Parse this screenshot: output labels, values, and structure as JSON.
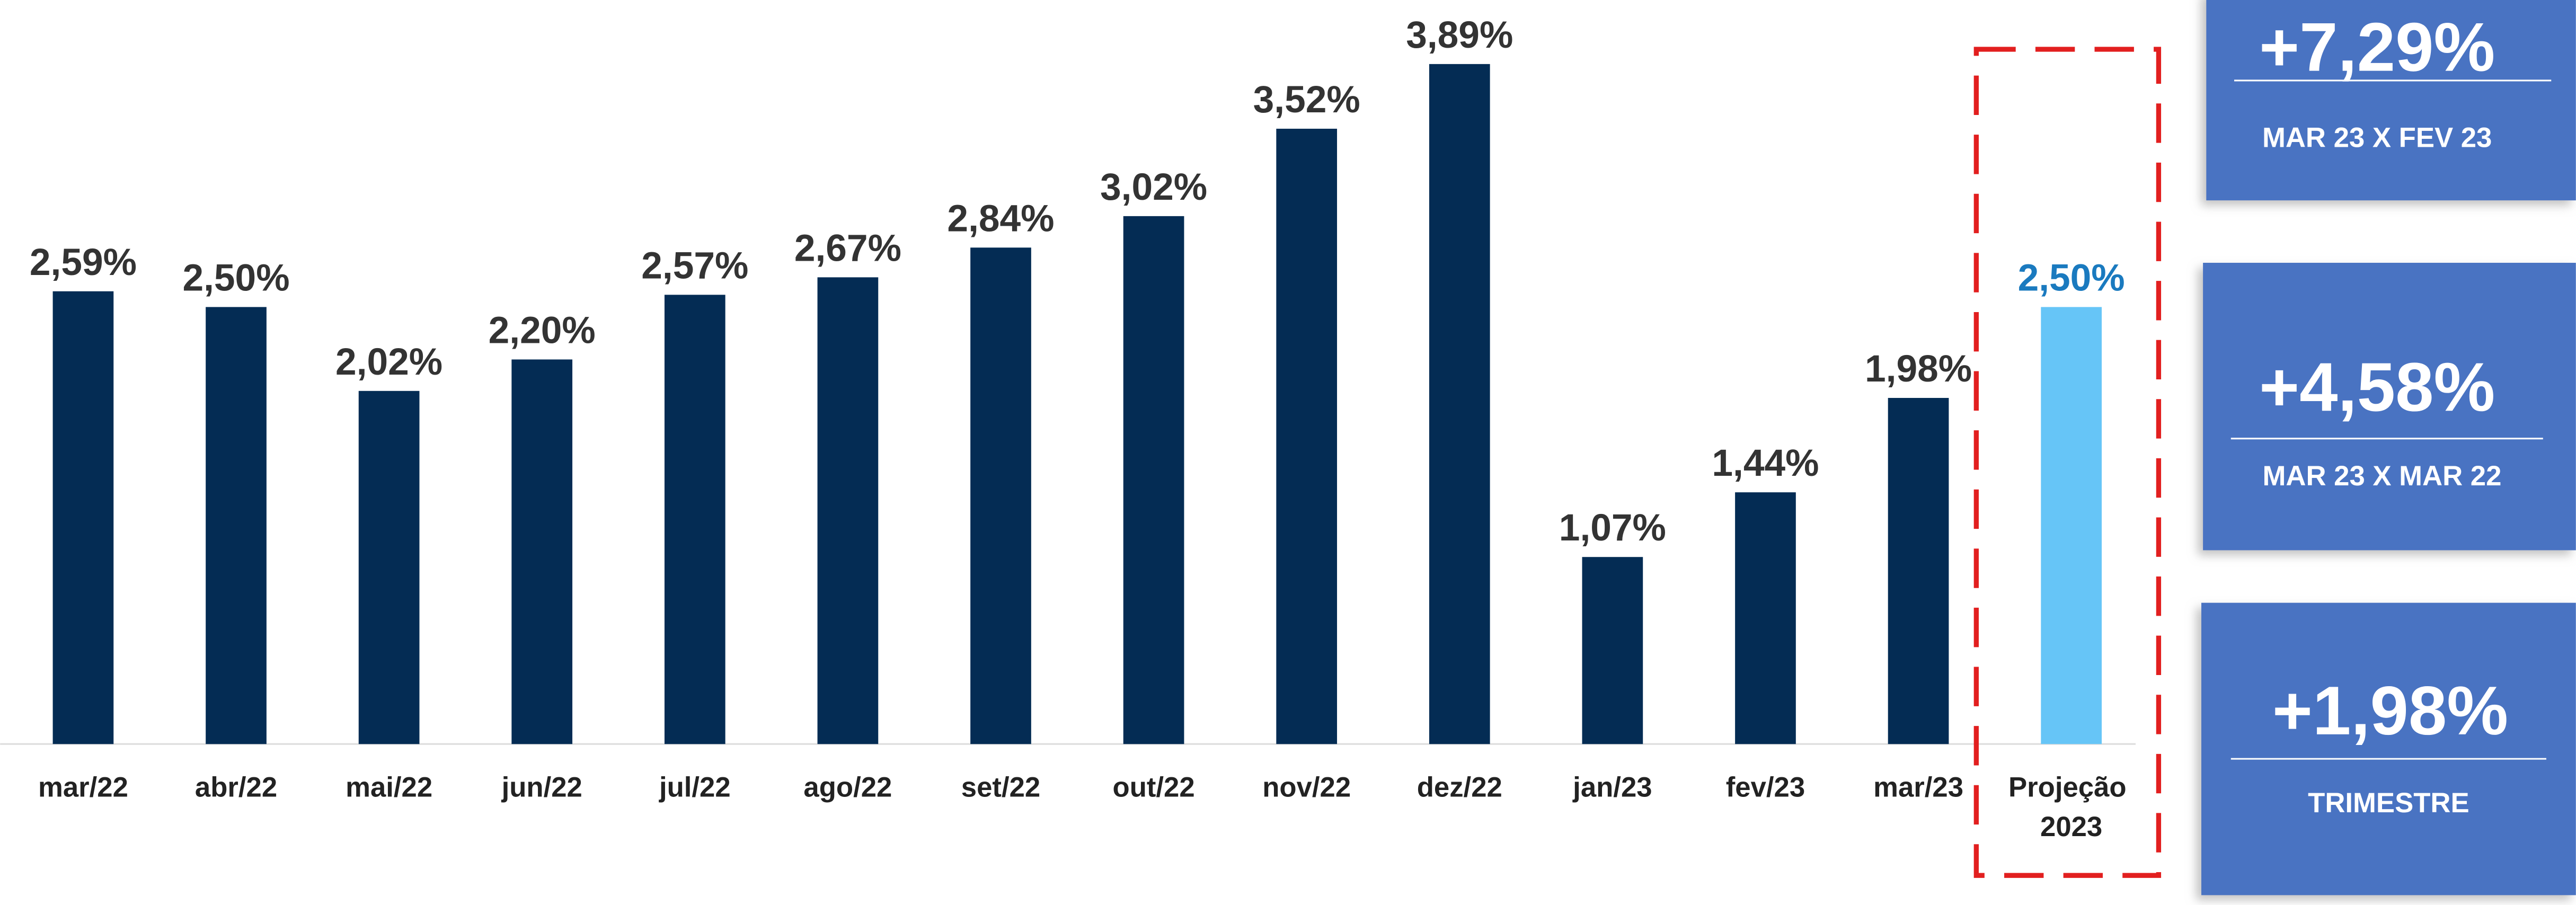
{
  "chart_data": {
    "type": "bar",
    "categories": [
      "mar/22",
      "abr/22",
      "mai/22",
      "jun/22",
      "jul/22",
      "ago/22",
      "set/22",
      "out/22",
      "nov/22",
      "dez/22",
      "jan/23",
      "fev/23",
      "mar/23",
      "Projeção 2023"
    ],
    "values": [
      2.59,
      2.5,
      2.02,
      2.2,
      2.57,
      2.67,
      2.84,
      3.02,
      3.52,
      3.89,
      1.07,
      1.44,
      1.98,
      2.5
    ],
    "value_labels": [
      "2,59%",
      "2,50%",
      "2,02%",
      "2,20%",
      "2,57%",
      "2,67%",
      "2,84%",
      "3,02%",
      "3,52%",
      "3,89%",
      "1,07%",
      "1,44%",
      "1,98%",
      "2,50%"
    ],
    "colors": [
      "#042c54",
      "#042c54",
      "#042c54",
      "#042c54",
      "#042c54",
      "#042c54",
      "#042c54",
      "#042c54",
      "#042c54",
      "#042c54",
      "#042c54",
      "#042c54",
      "#042c54",
      "#66c5f7"
    ],
    "value_label_colors": [
      "#333333",
      "#333333",
      "#333333",
      "#333333",
      "#333333",
      "#333333",
      "#333333",
      "#333333",
      "#333333",
      "#333333",
      "#333333",
      "#333333",
      "#333333",
      "#1a7abf"
    ],
    "ylim": [
      0,
      4.2
    ]
  },
  "summary_boxes": [
    {
      "value": "+7,29%",
      "label": "MAR 23 X FEV 23"
    },
    {
      "value": "+4,58%",
      "label": "MAR 23 X MAR 22"
    },
    {
      "value": "+1,98%",
      "label": "TRIMESTRE"
    }
  ]
}
